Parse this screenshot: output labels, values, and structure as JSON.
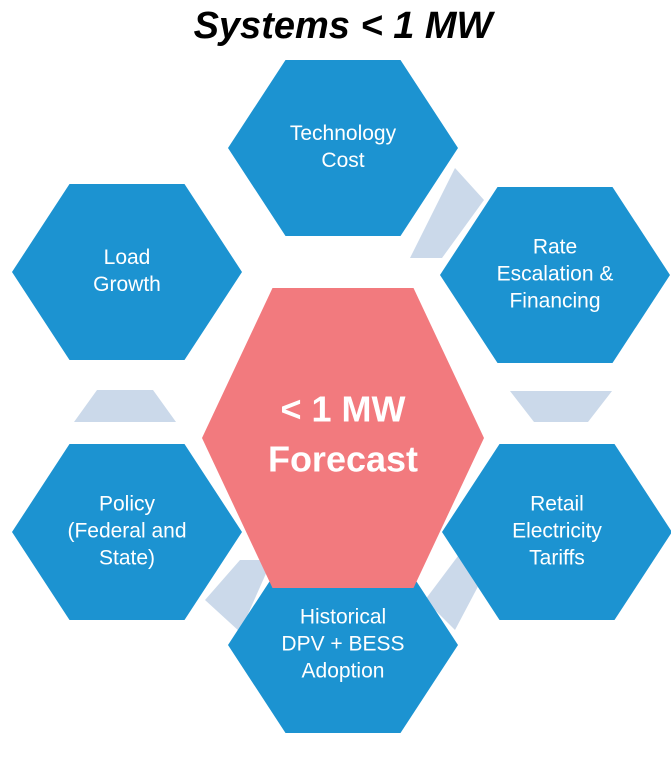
{
  "title": "Systems < 1 MW",
  "center": {
    "lines": [
      "< 1 MW",
      "Forecast"
    ]
  },
  "nodes": [
    {
      "lines": [
        "Technology",
        "Cost"
      ]
    },
    {
      "lines": [
        "Rate",
        "Escalation &",
        "Financing"
      ]
    },
    {
      "lines": [
        "Retail",
        "Electricity",
        "Tariffs"
      ]
    },
    {
      "lines": [
        "Historical",
        "DPV + BESS",
        "Adoption"
      ]
    },
    {
      "lines": [
        "Policy",
        "(Federal and",
        "State)"
      ]
    },
    {
      "lines": [
        "Load",
        "Growth"
      ]
    }
  ]
}
